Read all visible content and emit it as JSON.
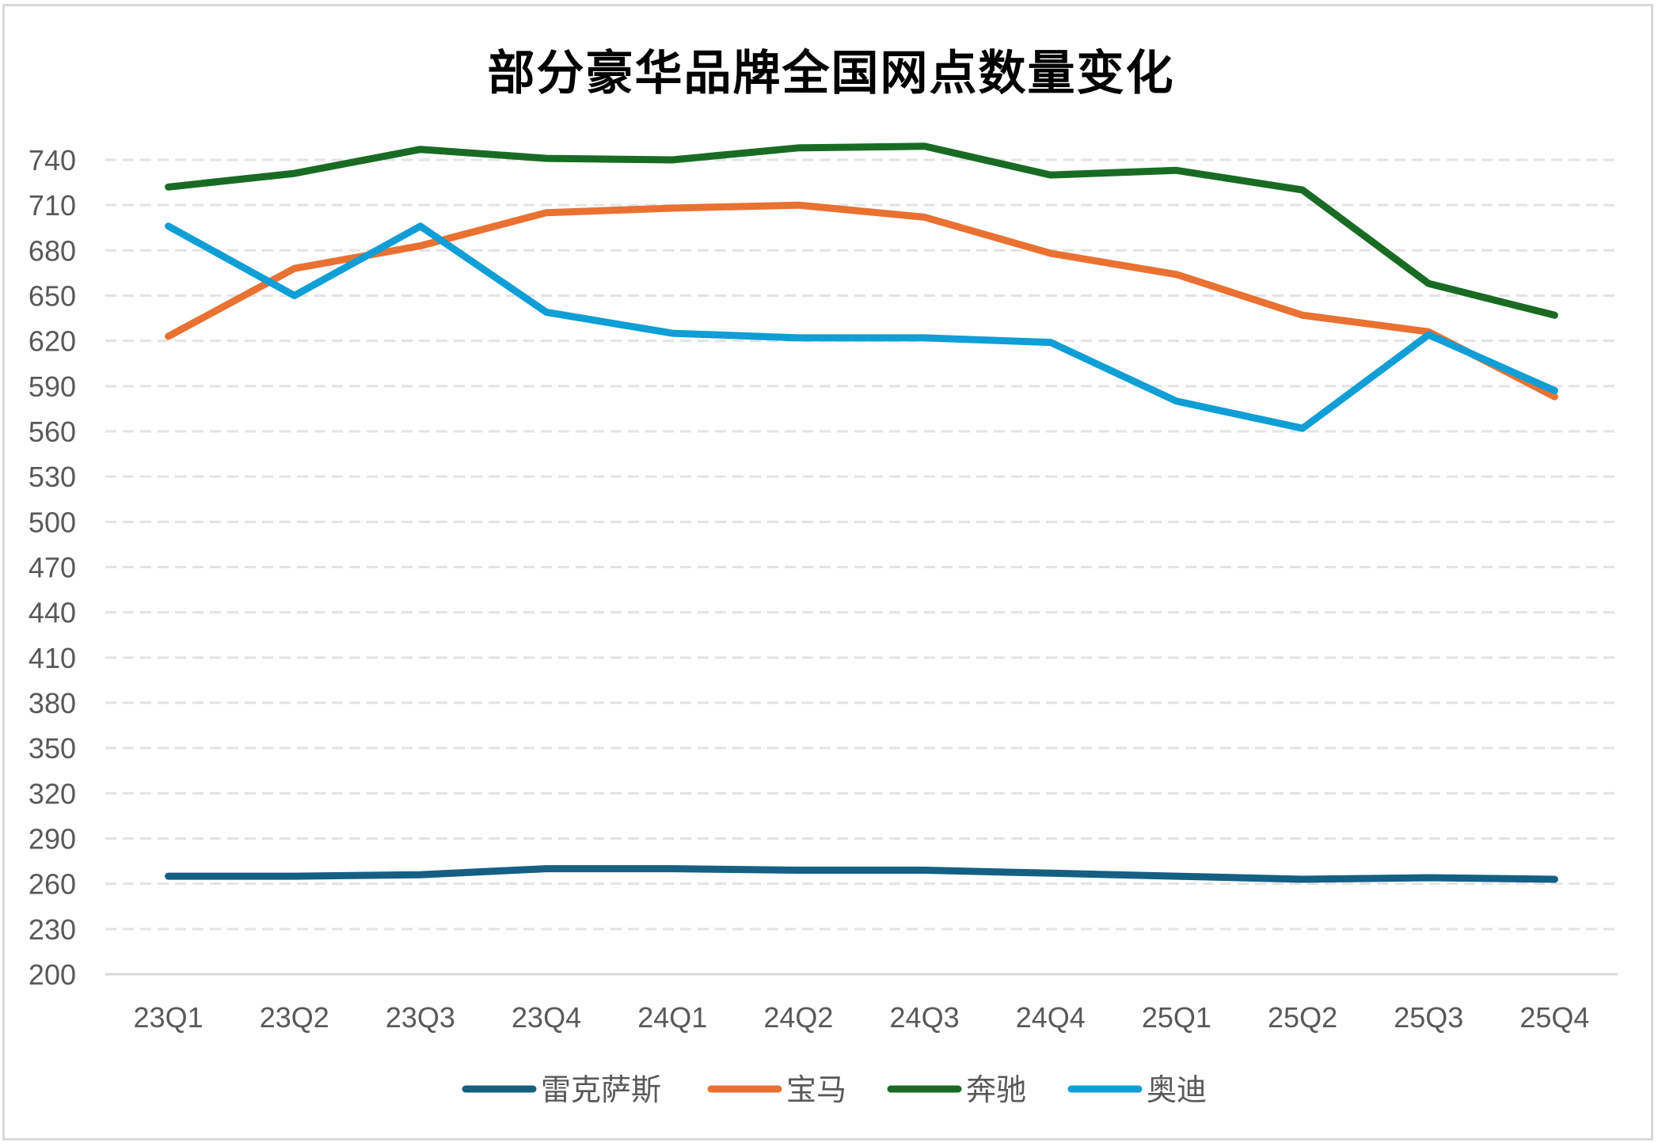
{
  "chart_data": {
    "type": "line",
    "title": "部分豪华品牌全国网点数量变化",
    "xlabel": "",
    "ylabel": "",
    "categories": [
      "23Q1",
      "23Q2",
      "23Q3",
      "23Q4",
      "24Q1",
      "24Q2",
      "24Q3",
      "24Q4",
      "25Q1",
      "25Q2",
      "25Q3",
      "25Q4"
    ],
    "ylim": [
      200,
      740
    ],
    "yticks": [
      200,
      230,
      260,
      290,
      320,
      350,
      380,
      410,
      440,
      470,
      500,
      530,
      560,
      590,
      620,
      650,
      680,
      710,
      740
    ],
    "grid": true,
    "grid_style": "dashed",
    "legend_position": "bottom",
    "series": [
      {
        "name": "雷克萨斯",
        "color": "#156082",
        "values": [
          265,
          265,
          266,
          270,
          270,
          269,
          269,
          267,
          265,
          263,
          264,
          263
        ]
      },
      {
        "name": "宝马",
        "color": "#E97132",
        "values": [
          623,
          668,
          683,
          705,
          708,
          710,
          702,
          678,
          664,
          637,
          626,
          583
        ]
      },
      {
        "name": "奔驰",
        "color": "#196B24",
        "values": [
          722,
          731,
          747,
          741,
          740,
          748,
          749,
          730,
          733,
          720,
          658,
          637
        ]
      },
      {
        "name": "奥迪",
        "color": "#0F9ED5",
        "values": [
          696,
          650,
          696,
          639,
          625,
          622,
          622,
          619,
          580,
          562,
          624,
          587
        ]
      }
    ]
  }
}
